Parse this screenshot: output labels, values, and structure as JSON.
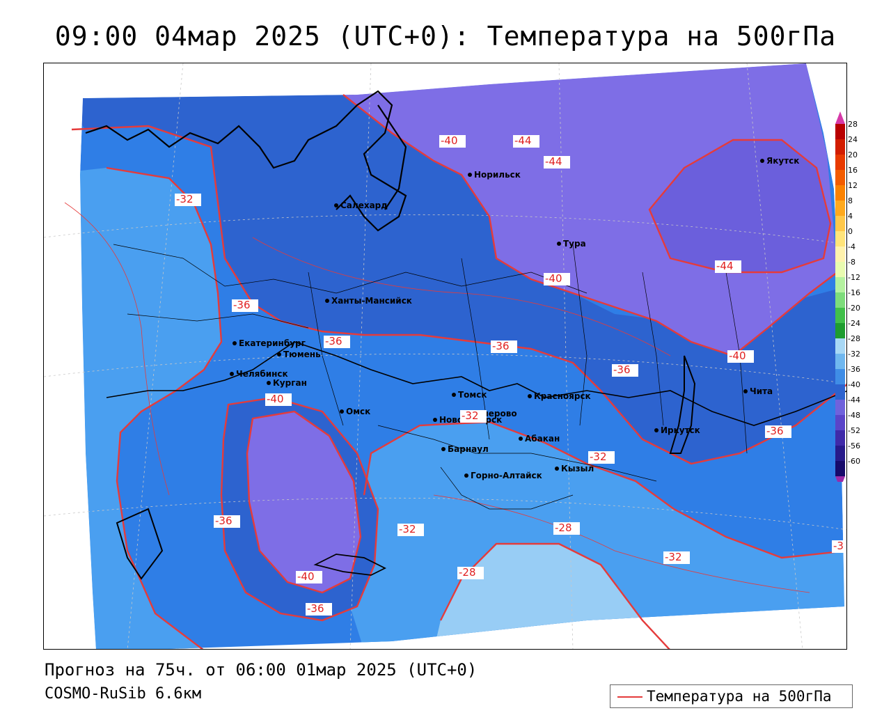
{
  "title": "09:00 04мар 2025 (UTC+0): Температура на 500гПа",
  "forecast_line": "Прогноз на 75ч. от 06:00 01мар 2025 (UTC+0)",
  "model_line": "COSMO-RuSib 6.6км",
  "legend": {
    "line_label": "Температура на 500гПа",
    "line_color": "#e53b3b"
  },
  "colors": {
    "c_lt_minus44": "#6b5fdc",
    "c_minus44_40": "#7e6ee6",
    "c_minus40_36": "#2d63cf",
    "c_minus36_32": "#2f7ee6",
    "c_minus32_28": "#4a9ff0",
    "c_minus28_24": "#98cdf5",
    "contour": "#e53b3b"
  },
  "colorbar": {
    "ticks": [
      "28",
      "24",
      "20",
      "16",
      "12",
      "8",
      "4",
      "0",
      "-4",
      "-8",
      "-12",
      "-16",
      "-20",
      "-24",
      "-28",
      "-32",
      "-36",
      "-40",
      "-44",
      "-48",
      "-52",
      "-56",
      "-60"
    ],
    "colors": [
      "#b80000",
      "#d21d00",
      "#e83a00",
      "#f35c00",
      "#fb8200",
      "#ffa91d",
      "#ffc84a",
      "#ffe47a",
      "#fff2ad",
      "#e9fbb0",
      "#b5f2a0",
      "#7ddc7b",
      "#41bf4a",
      "#1e9c2f",
      "#a8d8f5",
      "#6fb7ef",
      "#3f8de6",
      "#2d63cf",
      "#6f62dc",
      "#5a44c8",
      "#3f2aa8",
      "#271a8a",
      "#160a6a"
    ],
    "top_arrow_color": "#d63aa8",
    "bottom_arrow_color": "#9a2ba8"
  },
  "cities": [
    {
      "name": "Якутск"
    },
    {
      "name": "Норильск"
    },
    {
      "name": "Салехард"
    },
    {
      "name": "Тура"
    },
    {
      "name": "Ханты-Мансийск"
    },
    {
      "name": "Екатеринбург"
    },
    {
      "name": "Тюмень"
    },
    {
      "name": "Челябинск"
    },
    {
      "name": "Курган"
    },
    {
      "name": "Омск"
    },
    {
      "name": "Томск"
    },
    {
      "name": "Кемерово"
    },
    {
      "name": "Новосибирск"
    },
    {
      "name": "Красноярск"
    },
    {
      "name": "Абакан"
    },
    {
      "name": "Барнаул"
    },
    {
      "name": "Горно-Алтайск"
    },
    {
      "name": "Кызыл"
    },
    {
      "name": "Иркутск"
    },
    {
      "name": "Чита"
    }
  ],
  "contour_labels": [
    {
      "text": "-40"
    },
    {
      "text": "-44"
    },
    {
      "text": "-44"
    },
    {
      "text": "-32"
    },
    {
      "text": "-36"
    },
    {
      "text": "-40"
    },
    {
      "text": "-44"
    },
    {
      "text": "-36"
    },
    {
      "text": "-36"
    },
    {
      "text": "-40"
    },
    {
      "text": "-36"
    },
    {
      "text": "-40"
    },
    {
      "text": "-32"
    },
    {
      "text": "-36"
    },
    {
      "text": "-32"
    },
    {
      "text": "-36"
    },
    {
      "text": "-32"
    },
    {
      "text": "-28"
    },
    {
      "text": "-28"
    },
    {
      "text": "-32"
    },
    {
      "text": "-40"
    },
    {
      "text": "-36"
    },
    {
      "text": "-3"
    }
  ]
}
